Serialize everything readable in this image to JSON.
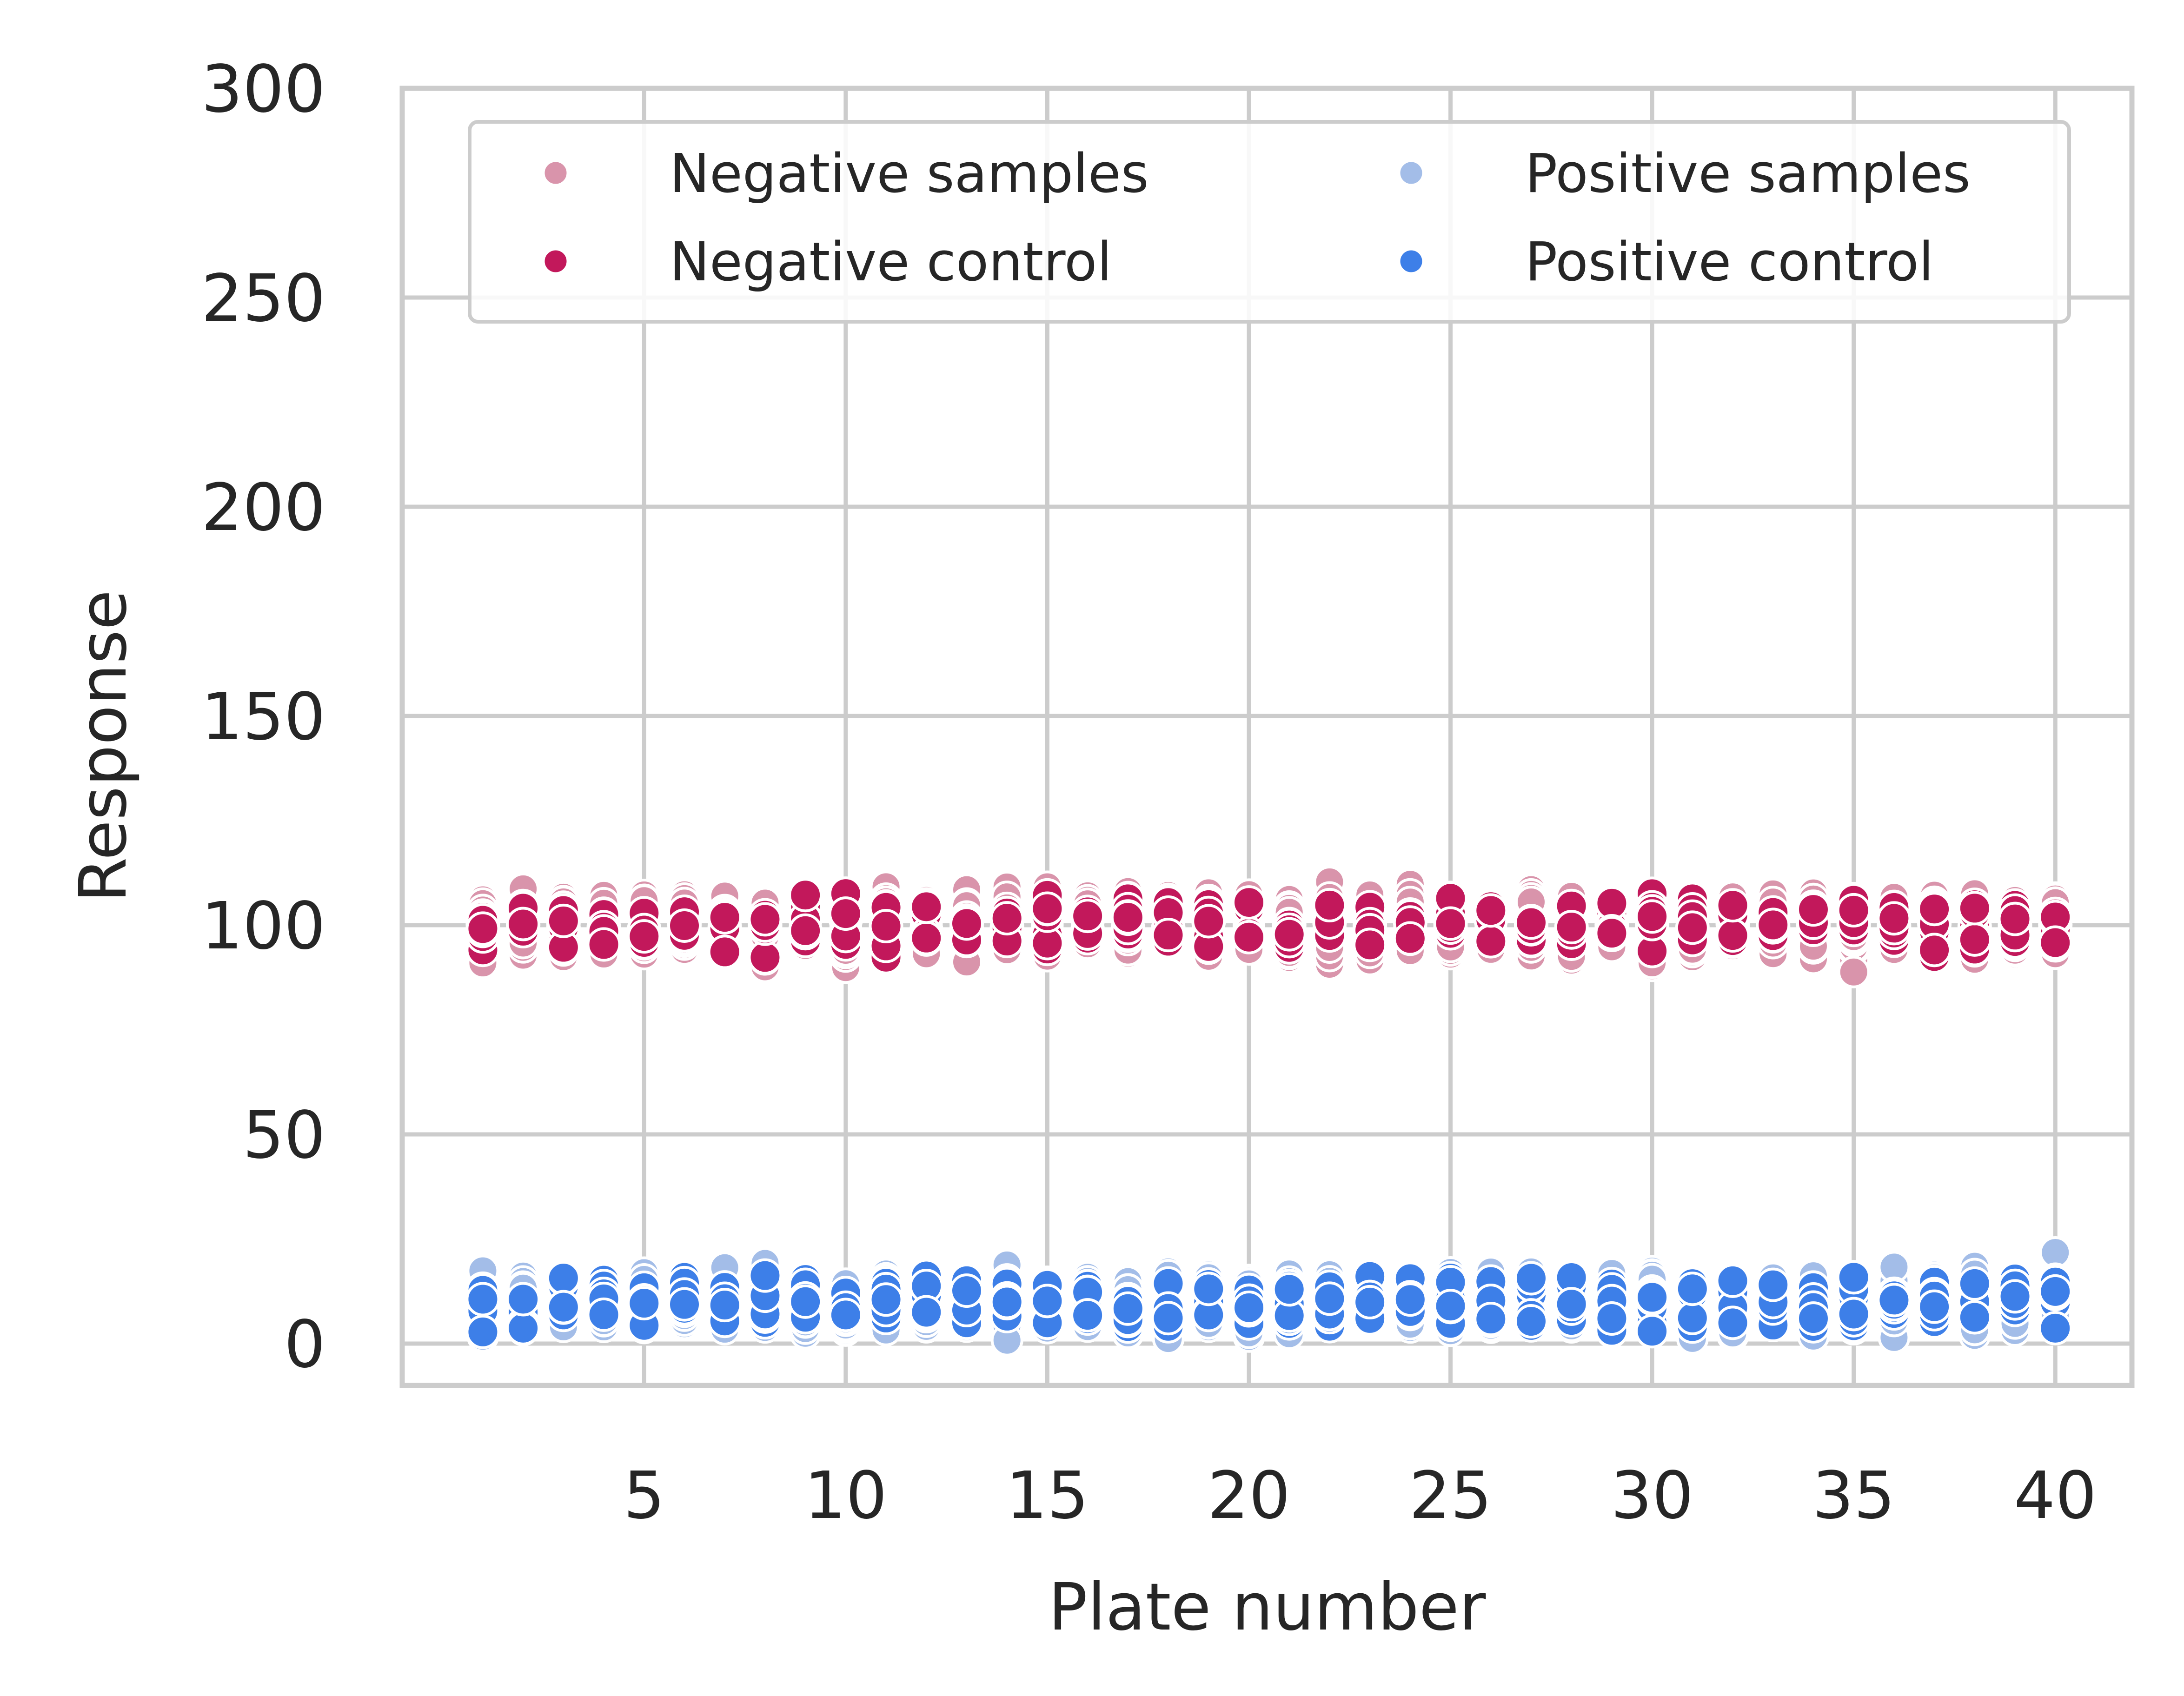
{
  "chart_data": {
    "type": "scatter",
    "xlabel": "Plate number",
    "ylabel": "Response",
    "xlim": [
      -1,
      41.9
    ],
    "ylim": [
      -10,
      300
    ],
    "xticks": [
      5,
      10,
      15,
      20,
      25,
      30,
      35,
      40
    ],
    "yticks": [
      0,
      50,
      100,
      150,
      200,
      250,
      300
    ],
    "grid": true,
    "legend_position": "top",
    "legend_columns": 2,
    "plate_count": 40,
    "series": [
      {
        "name": "Negative samples",
        "color": "#d994ab",
        "role": "sample",
        "center": 100,
        "spread": 8.5,
        "points_per_plate": 40
      },
      {
        "name": "Negative control",
        "color": "#c2185b",
        "role": "control",
        "center": 100,
        "spread": 7,
        "points_per_plate": 8
      },
      {
        "name": "Positive samples",
        "color": "#a3bde8",
        "role": "sample",
        "center": 10,
        "spread": 8,
        "points_per_plate": 40
      },
      {
        "name": "Positive control",
        "color": "#3d7fe8",
        "role": "control",
        "center": 10,
        "spread": 7.5,
        "points_per_plate": 8
      }
    ]
  }
}
